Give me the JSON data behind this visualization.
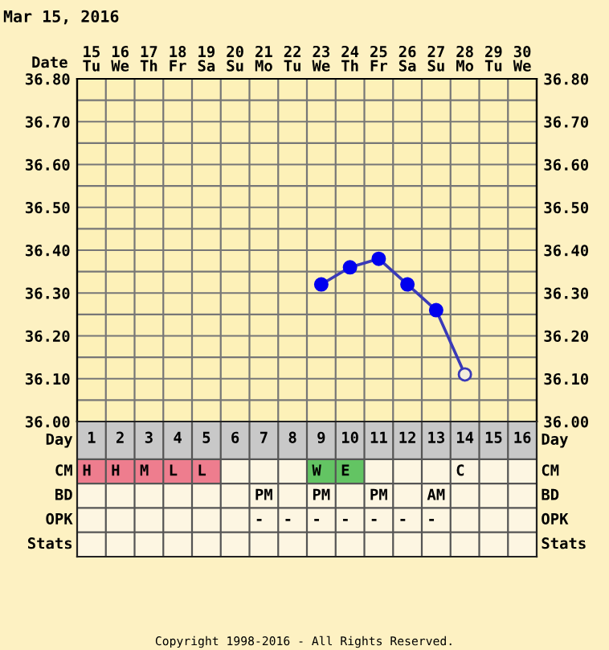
{
  "chart_data": [
    {
      "type": "line",
      "title": "Mar 15, 2016",
      "xlabel": "Date",
      "categories": [
        "15\nTu",
        "16\nWe",
        "17\nTh",
        "18\nFr",
        "19\nSa",
        "20\nSu",
        "21\nMo",
        "22\nTu",
        "23\nWe",
        "24\nTh",
        "25\nFr",
        "26\nSa",
        "27\nSu",
        "28\nMo",
        "29\nTu",
        "30\nWe"
      ],
      "series": [
        {
          "type": "line",
          "color": "#3a3ab8",
          "marker": "none",
          "values": [
            null,
            null,
            null,
            null,
            null,
            null,
            null,
            null,
            36.32,
            36.36,
            36.38,
            36.32,
            36.26,
            36.11,
            null,
            null
          ]
        },
        {
          "type": "scatter",
          "color": "#0000ee",
          "marker": "circle",
          "values": [
            null,
            null,
            null,
            null,
            null,
            null,
            null,
            null,
            36.32,
            36.36,
            36.38,
            36.32,
            36.26,
            null,
            null,
            null
          ]
        },
        {
          "type": "scatter",
          "color": "#f4eedd",
          "marker": "circle",
          "values": [
            null,
            null,
            null,
            null,
            null,
            null,
            null,
            null,
            null,
            null,
            null,
            null,
            null,
            36.11,
            null,
            null
          ]
        }
      ],
      "ylim": [
        36.0,
        36.8
      ],
      "yticks": [
        {
          "value": 36.0,
          "label": "36.00"
        },
        {
          "value": 36.05,
          "label": null
        },
        {
          "value": 36.1,
          "label": "36.10"
        },
        {
          "value": 36.15,
          "label": null
        },
        {
          "value": 36.2,
          "label": "36.20"
        },
        {
          "value": 36.25,
          "label": null
        },
        {
          "value": 36.3,
          "label": "36.30"
        },
        {
          "value": 36.35,
          "label": null
        },
        {
          "value": 36.4,
          "label": "36.40"
        },
        {
          "value": 36.45,
          "label": null
        },
        {
          "value": 36.5,
          "label": "36.50"
        },
        {
          "value": 36.55,
          "label": null
        },
        {
          "value": 36.6,
          "label": "36.60"
        },
        {
          "value": 36.65,
          "label": null
        },
        {
          "value": 36.7,
          "label": "36.70"
        },
        {
          "value": 36.75,
          "label": null
        },
        {
          "value": 36.8,
          "label": "36.80"
        }
      ],
      "y2lim": [
        36.0,
        36.8
      ],
      "y2ticks": [
        {
          "value": 36.0,
          "label": "36.00"
        },
        {
          "value": 36.05,
          "label": null
        },
        {
          "value": 36.1,
          "label": "36.10"
        },
        {
          "value": 36.15,
          "label": null
        },
        {
          "value": 36.2,
          "label": "36.20"
        },
        {
          "value": 36.25,
          "label": null
        },
        {
          "value": 36.3,
          "label": "36.30"
        },
        {
          "value": 36.35,
          "label": null
        },
        {
          "value": 36.4,
          "label": "36.40"
        },
        {
          "value": 36.45,
          "label": null
        },
        {
          "value": 36.5,
          "label": "36.50"
        },
        {
          "value": 36.55,
          "label": null
        },
        {
          "value": 36.6,
          "label": "36.60"
        },
        {
          "value": 36.65,
          "label": null
        },
        {
          "value": 36.7,
          "label": "36.70"
        },
        {
          "value": 36.75,
          "label": null
        },
        {
          "value": 36.8,
          "label": "36.80"
        }
      ],
      "grid": true,
      "legend": false
    },
    {
      "type": "heatmap",
      "xlabel": "Day",
      "categories": [
        "1",
        "2",
        "3",
        "4",
        "5",
        "6",
        "7",
        "8",
        "9",
        "10",
        "11",
        "12",
        "13",
        "14",
        "15",
        "16"
      ],
      "y_categories": [
        "CM",
        "BD",
        "OPK",
        "Stats"
      ],
      "y2_categories": [
        "CM",
        "BD",
        "OPK",
        "Stats"
      ],
      "cells": [
        [
          null,
          null,
          null,
          null,
          null,
          null,
          null,
          null,
          null,
          null,
          null,
          null,
          null,
          null,
          null,
          null
        ],
        [
          null,
          null,
          null,
          null,
          null,
          null,
          null,
          null,
          null,
          null,
          null,
          null,
          null,
          null,
          null,
          null
        ],
        [
          null,
          null,
          null,
          null,
          null,
          null,
          null,
          null,
          null,
          null,
          null,
          null,
          null,
          null,
          null,
          null
        ],
        [
          null,
          null,
          null,
          null,
          null,
          null,
          null,
          null,
          null,
          null,
          null,
          null,
          null,
          null,
          null,
          null
        ]
      ],
      "cell_labels": [
        [
          "H",
          "H",
          "M",
          "L",
          "L",
          null,
          null,
          null,
          "W",
          "E",
          null,
          null,
          null,
          "C",
          null,
          null
        ],
        [
          null,
          null,
          null,
          null,
          null,
          null,
          "PM",
          null,
          "PM",
          null,
          "PM",
          null,
          "AM",
          null,
          null,
          null
        ],
        [
          null,
          null,
          null,
          null,
          null,
          null,
          "-",
          "-",
          "-",
          "-",
          "-",
          "-",
          "-",
          null,
          null,
          null
        ],
        [
          null,
          null,
          null,
          null,
          null,
          null,
          null,
          null,
          null,
          null,
          null,
          null,
          null,
          null,
          null,
          null
        ]
      ],
      "colors": [
        [
          "#ee7d8e",
          "#ee7d8e",
          "#ee7d8e",
          "#ee7d8e",
          "#ee7d8e",
          null,
          null,
          null,
          "#63c463",
          "#63c463",
          null,
          null,
          null,
          null,
          null,
          null
        ],
        [
          null,
          null,
          null,
          null,
          null,
          null,
          null,
          null,
          null,
          null,
          null,
          null,
          null,
          null,
          null,
          null
        ],
        [
          null,
          null,
          null,
          null,
          null,
          null,
          null,
          null,
          null,
          null,
          null,
          null,
          null,
          null,
          null,
          null
        ],
        [
          null,
          null,
          null,
          null,
          null,
          null,
          null,
          null,
          null,
          null,
          null,
          null,
          null,
          null,
          null,
          null
        ]
      ],
      "annotations": [
        "Copyright 1998-2016 - All Rights Reserved."
      ]
    }
  ]
}
